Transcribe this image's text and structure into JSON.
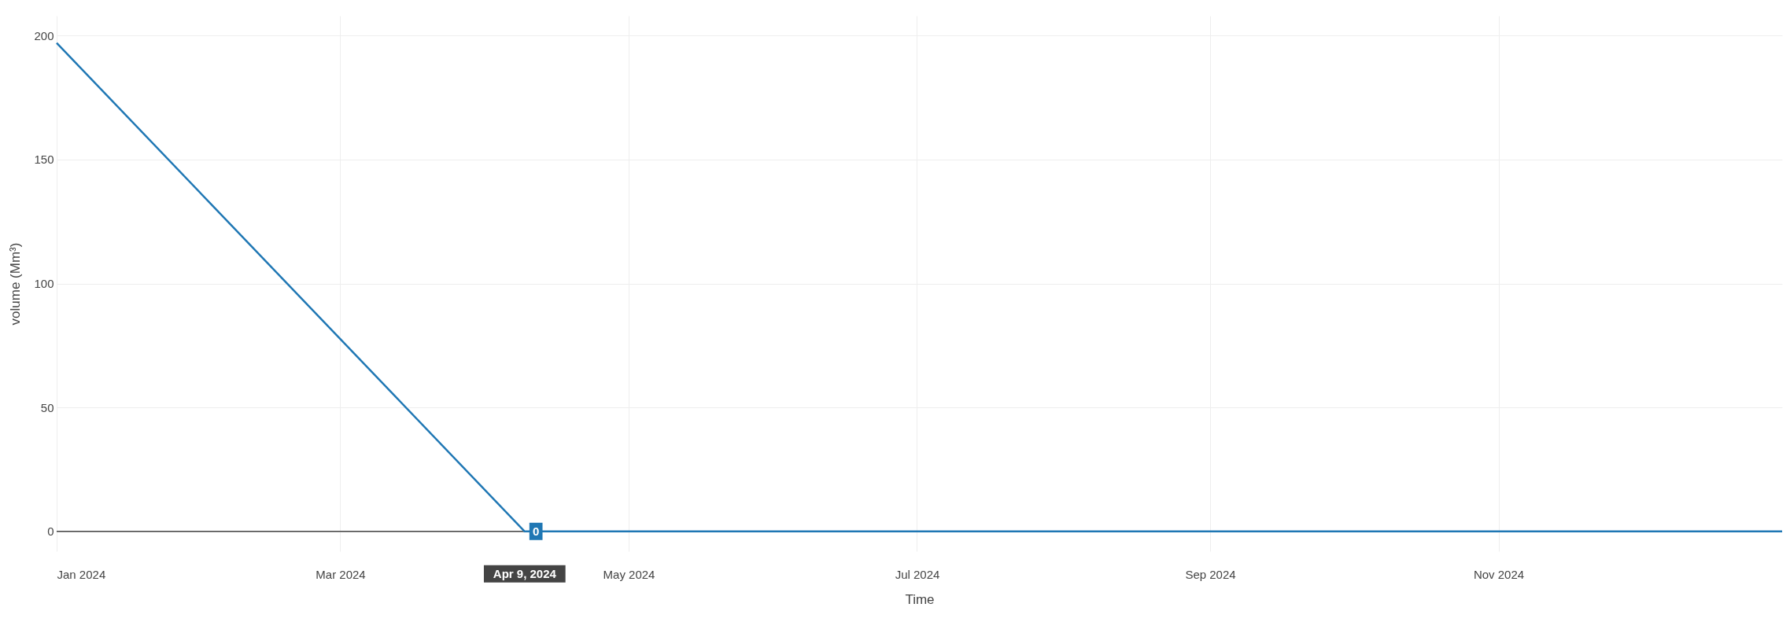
{
  "chart_data": {
    "type": "line",
    "xlabel": "Time",
    "ylabel": "volume (Mm³)",
    "x": [
      "2024-01-01",
      "2024-04-09",
      "2024-12-31"
    ],
    "series": [
      {
        "color": "#1f77b4",
        "values": [
          197,
          0,
          0
        ]
      }
    ],
    "xlim": [
      "2024-01-01",
      "2024-12-31"
    ],
    "xticks": [
      {
        "value": "2024-01-01",
        "label": "Jan 2024"
      },
      {
        "value": "2024-03-01",
        "label": "Mar 2024"
      },
      {
        "value": "2024-05-01",
        "label": "May 2024"
      },
      {
        "value": "2024-07-01",
        "label": "Jul 2024"
      },
      {
        "value": "2024-09-01",
        "label": "Sep 2024"
      },
      {
        "value": "2024-11-01",
        "label": "Nov 2024"
      }
    ],
    "ylim": [
      -8,
      208
    ],
    "yticks": [
      0,
      50,
      100,
      150,
      200
    ],
    "ref_lines": [
      {
        "axis": "y",
        "value": 0,
        "color": "#444444"
      }
    ],
    "annotations": [
      {
        "text": "Apr 9, 2024",
        "x": "2024-04-09",
        "y": 0
      },
      {
        "text": "0",
        "x": "2024-04-09",
        "y": 0
      }
    ],
    "grid": true,
    "marker": "none",
    "line_style": "solid"
  }
}
